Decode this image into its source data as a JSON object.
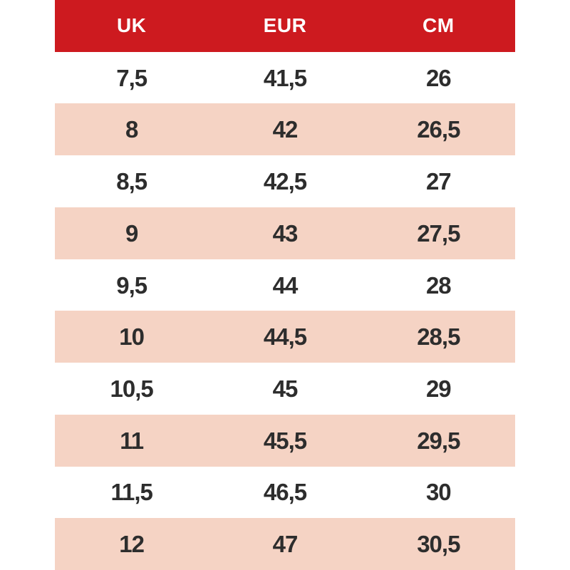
{
  "colors": {
    "header_background": "#cd1a1f",
    "header_text": "#ffffff",
    "row_background": "#ffffff",
    "row_alt_background": "#f5d3c4",
    "cell_text": "#2d2d2d"
  },
  "chart_data": {
    "type": "table",
    "title": "",
    "columns": [
      "UK",
      "EUR",
      "CM"
    ],
    "rows": [
      {
        "uk": "7,5",
        "eur": "41,5",
        "cm": "26"
      },
      {
        "uk": "8",
        "eur": "42",
        "cm": "26,5"
      },
      {
        "uk": "8,5",
        "eur": "42,5",
        "cm": "27"
      },
      {
        "uk": "9",
        "eur": "43",
        "cm": "27,5"
      },
      {
        "uk": "9,5",
        "eur": "44",
        "cm": "28"
      },
      {
        "uk": "10",
        "eur": "44,5",
        "cm": "28,5"
      },
      {
        "uk": "10,5",
        "eur": "45",
        "cm": "29"
      },
      {
        "uk": "11",
        "eur": "45,5",
        "cm": "29,5"
      },
      {
        "uk": "11,5",
        "eur": "46,5",
        "cm": "30"
      },
      {
        "uk": "12",
        "eur": "47",
        "cm": "30,5"
      }
    ],
    "layout": {
      "zebra": [
        "#ffffff",
        "#f5d3c4"
      ],
      "header_position": "top",
      "columns_equal_width": true
    }
  }
}
